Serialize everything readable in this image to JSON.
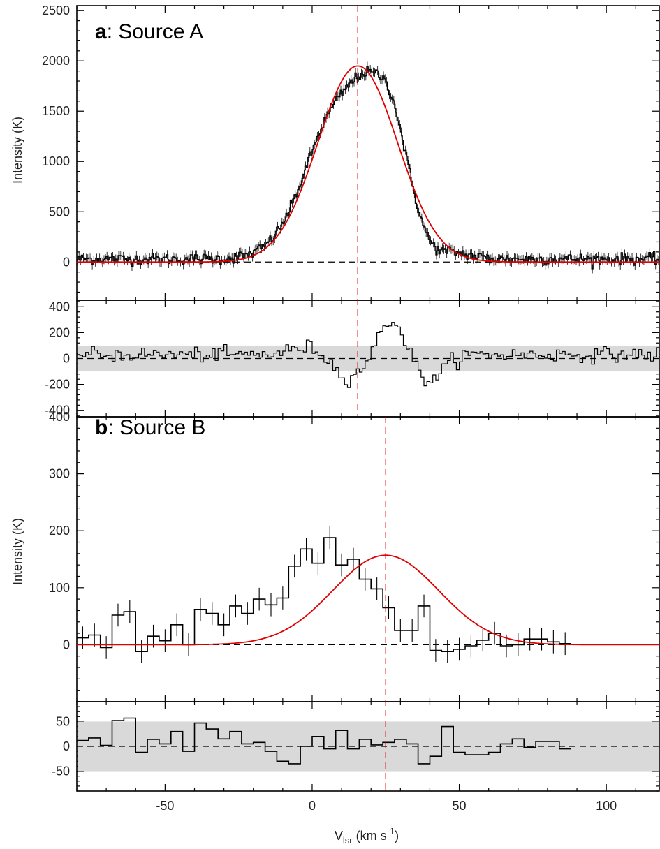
{
  "chart_data": [
    {
      "type": "line",
      "panel_label": "a",
      "title": "Source A",
      "xlabel_main": "V",
      "xlabel_sub": "lsr",
      "xlabel_unit": "(km s",
      "xlabel_sup": "-1",
      "xlabel_close": ")",
      "ylabel": "Intensity (K)",
      "xlim": [
        -80,
        118
      ],
      "ylim": [
        -380,
        2550
      ],
      "yticks": [
        0,
        500,
        1000,
        1500,
        2000,
        2500
      ],
      "xticks": [
        -50,
        0,
        50,
        100
      ],
      "fit": {
        "amplitude": 1950,
        "center": 15.5,
        "sigma": 13.6
      },
      "vline": 15.5,
      "observed_peak": {
        "x": 21,
        "y": 2000
      },
      "observed_features": [
        {
          "x": 5,
          "y": 1650
        },
        {
          "x": 12,
          "y": 1780
        },
        {
          "x": 16,
          "y": 1820
        },
        {
          "x": 20,
          "y": 1950
        },
        {
          "x": 25,
          "y": 1970
        },
        {
          "x": 28,
          "y": 1870
        },
        {
          "x": 33,
          "y": 1350
        },
        {
          "x": 40,
          "y": 500
        }
      ],
      "residual": {
        "ylim": [
          -450,
          450
        ],
        "yticks": [
          -400,
          -200,
          0,
          200,
          400
        ],
        "band": [
          -100,
          100
        ],
        "features": [
          {
            "x": 0,
            "y": 50
          },
          {
            "x": 8,
            "y": -150
          },
          {
            "x": 14,
            "y": -220
          },
          {
            "x": 21,
            "y": 150
          },
          {
            "x": 27,
            "y": 300
          },
          {
            "x": 30,
            "y": 250
          },
          {
            "x": 36,
            "y": -150
          },
          {
            "x": 40,
            "y": -230
          },
          {
            "x": 46,
            "y": -100
          }
        ]
      }
    },
    {
      "type": "line",
      "panel_label": "b",
      "title": "Source B",
      "ylabel": "Intensity (K)",
      "xlim": [
        -80,
        118
      ],
      "ylim": [
        -100,
        400
      ],
      "yticks": [
        0,
        100,
        200,
        300,
        400
      ],
      "xticks": [
        -50,
        0,
        50,
        100
      ],
      "fit": {
        "amplitude": 157,
        "center": 25,
        "sigma": 18
      },
      "vline": 25,
      "bin_width": 4,
      "x_start": -80,
      "values": [
        12,
        17,
        -5,
        52,
        58,
        -12,
        15,
        7,
        35,
        0,
        62,
        55,
        35,
        68,
        55,
        80,
        70,
        82,
        138,
        168,
        143,
        188,
        140,
        150,
        115,
        98,
        65,
        25,
        25,
        68,
        -10,
        -12,
        -8,
        -2,
        8,
        20,
        -2,
        0,
        10,
        10,
        5,
        2
      ],
      "residual": {
        "ylim": [
          -90,
          90
        ],
        "yticks": [
          -50,
          0,
          50
        ],
        "band": [
          -50,
          50
        ],
        "values": [
          12,
          17,
          2,
          52,
          57,
          -12,
          14,
          5,
          30,
          -10,
          47,
          35,
          15,
          30,
          5,
          8,
          -10,
          -30,
          -35,
          0,
          20,
          -5,
          32,
          -5,
          14,
          3,
          8,
          14,
          5,
          -35,
          -20,
          40,
          -12,
          -17,
          -17,
          -12,
          5,
          15,
          -2,
          10,
          10,
          -5
        ]
      }
    }
  ]
}
